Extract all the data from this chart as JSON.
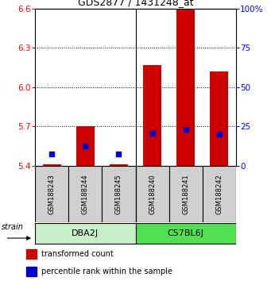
{
  "title": "GDS2877 / 1431248_at",
  "samples": [
    "GSM188243",
    "GSM188244",
    "GSM188245",
    "GSM188240",
    "GSM188241",
    "GSM188242"
  ],
  "groups": [
    {
      "label": "DBA2J",
      "indices": [
        0,
        1,
        2
      ],
      "color": "#c8f0c8"
    },
    {
      "label": "C57BL6J",
      "indices": [
        3,
        4,
        5
      ],
      "color": "#50e050"
    }
  ],
  "red_bar_tops": [
    5.41,
    5.7,
    5.41,
    6.17,
    6.6,
    6.12
  ],
  "blue_marker_y": [
    5.49,
    5.55,
    5.49,
    5.65,
    5.68,
    5.64
  ],
  "ymin": 5.4,
  "ymax": 6.6,
  "yticks_left": [
    5.4,
    5.7,
    6.0,
    6.3,
    6.6
  ],
  "yticks_right": [
    0,
    25,
    50,
    75,
    100
  ],
  "bar_color": "#cc0000",
  "marker_color": "#0000cc",
  "label_red": "transformed count",
  "label_blue": "percentile rank within the sample",
  "strain_label": "strain",
  "group_box_color_dba": "#c8f0c8",
  "group_box_color_c57": "#50e050",
  "sample_box_color": "#d0d0d0"
}
